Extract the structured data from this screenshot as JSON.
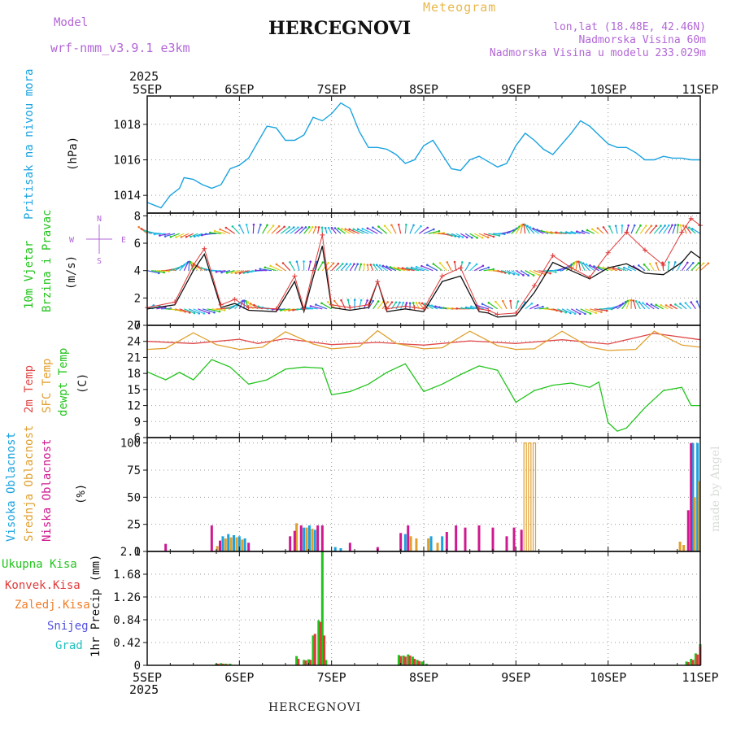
{
  "header": {
    "model_label": "Model",
    "model_name": "wrf-nmm_v3.9.1 e3km",
    "title": "HERCEGNOVI",
    "subtitle": "Meteogram",
    "lonlat": "lon,lat (18.48E, 42.46N)",
    "elevation": "Nadmorska Visina 60m",
    "model_elevation": "Nadmorska Visina u modelu 233.029m"
  },
  "footer": {
    "station": "HERCEGNOVI",
    "credit": "made by Angel"
  },
  "x_axis": {
    "year": "2025",
    "day_labels": [
      "5SEP",
      "6SEP",
      "7SEP",
      "8SEP",
      "9SEP",
      "10SEP",
      "11SEP"
    ]
  },
  "colors": {
    "pressure": "#1aa3e0",
    "wind_speed": "#111111",
    "wind_gust": "#e03a3a",
    "t2m": "#e04848",
    "tsfc": "#e0a030",
    "dewpoint": "#22c41c",
    "cloud_high": "#1aa3e0",
    "cloud_mid": "#e0a030",
    "cloud_low": "#d01890",
    "precip_total": "#22c41c",
    "precip_conv": "#e03a3a",
    "precip_frz": "#f07d28",
    "snow": "#5050e0",
    "grad": "#20c0c0",
    "compass": "#b266d6"
  },
  "compass_rose": {
    "n": "N",
    "s": "S",
    "e": "E",
    "w": "W"
  },
  "chart_data": [
    {
      "type": "line",
      "id": "pressure",
      "ylabels": [
        "Pritisak na nivou mora",
        "(hPa)"
      ],
      "yticks": [
        "1014",
        "1016",
        "1018"
      ],
      "ylim": [
        1013,
        1019.6
      ],
      "series": [
        {
          "name": "Pritisak na nivou mora",
          "x": [
            0,
            0.1,
            0.15,
            0.25,
            0.35,
            0.4,
            0.5,
            0.6,
            0.7,
            0.8,
            0.9,
            1.0,
            1.1,
            1.2,
            1.3,
            1.4,
            1.5,
            1.6,
            1.7,
            1.8,
            1.9,
            2.0,
            2.1,
            2.2,
            2.3,
            2.4,
            2.5,
            2.6,
            2.7,
            2.8,
            2.9,
            3.0,
            3.1,
            3.2,
            3.3,
            3.4,
            3.5,
            3.6,
            3.7,
            3.8,
            3.9,
            4.0,
            4.1,
            4.2,
            4.3,
            4.4,
            4.5,
            4.6,
            4.7,
            4.8,
            4.9,
            5.0,
            5.1,
            5.2,
            5.3,
            5.4,
            5.5,
            5.6,
            5.7,
            5.8,
            5.9,
            6.0
          ],
          "values": [
            1013.6,
            1013.4,
            1013.3,
            1014.0,
            1014.4,
            1015.0,
            1014.9,
            1014.6,
            1014.4,
            1014.6,
            1015.5,
            1015.7,
            1016.1,
            1017.0,
            1017.9,
            1017.8,
            1017.1,
            1017.1,
            1017.4,
            1018.4,
            1018.2,
            1018.6,
            1019.2,
            1018.9,
            1017.6,
            1016.7,
            1016.7,
            1016.6,
            1016.3,
            1015.8,
            1016.0,
            1016.8,
            1017.1,
            1016.3,
            1015.5,
            1015.4,
            1016.0,
            1016.2,
            1015.9,
            1015.6,
            1015.8,
            1016.8,
            1017.5,
            1017.1,
            1016.6,
            1016.3,
            1016.9,
            1017.5,
            1018.2,
            1017.9,
            1017.4,
            1016.9,
            1016.7,
            1016.7,
            1016.4,
            1016.0,
            1016.0,
            1016.2,
            1016.1,
            1016.1,
            1016.0,
            1016.0
          ]
        }
      ]
    },
    {
      "type": "line",
      "id": "wind",
      "ylabels": [
        "10m Vjetar",
        "Brzina i Pravac",
        "(m/s)"
      ],
      "yticks": [
        "0",
        "2",
        "4",
        "6",
        "8"
      ],
      "ylim": [
        0,
        8.2
      ],
      "barb_rows": [
        1.2,
        4.0,
        6.7
      ],
      "series": [
        {
          "name": "speed",
          "x": [
            0,
            0.3,
            0.5,
            0.62,
            0.8,
            0.95,
            1.1,
            1.4,
            1.6,
            1.7,
            1.8,
            1.9,
            2.0,
            2.2,
            2.4,
            2.5,
            2.6,
            2.8,
            2.9,
            3.0,
            3.2,
            3.4,
            3.6,
            3.7,
            3.8,
            4.0,
            4.2,
            4.4,
            4.6,
            4.8,
            5.0,
            5.2,
            5.4,
            5.6,
            5.8,
            5.9,
            6.0
          ],
          "values": [
            1.2,
            1.5,
            4.0,
            5.2,
            1.3,
            1.6,
            1.1,
            1.0,
            3.2,
            1.0,
            3.5,
            5.8,
            1.3,
            1.1,
            1.3,
            3.2,
            1.0,
            1.2,
            1.1,
            1.0,
            3.2,
            3.6,
            1.0,
            0.9,
            0.6,
            0.7,
            2.4,
            4.6,
            4.0,
            3.4,
            4.2,
            4.5,
            3.8,
            3.7,
            4.6,
            5.4,
            4.9
          ]
        },
        {
          "name": "gust",
          "x": [
            0,
            0.3,
            0.5,
            0.62,
            0.8,
            0.95,
            1.1,
            1.4,
            1.6,
            1.7,
            1.8,
            1.9,
            2.0,
            2.2,
            2.4,
            2.5,
            2.6,
            2.8,
            2.9,
            3.0,
            3.2,
            3.4,
            3.6,
            3.7,
            3.8,
            4.0,
            4.2,
            4.4,
            4.6,
            4.8,
            5.0,
            5.2,
            5.4,
            5.6,
            5.8,
            5.9,
            6.0
          ],
          "values": [
            1.3,
            1.7,
            4.4,
            5.6,
            1.5,
            1.9,
            1.3,
            1.2,
            3.6,
            1.2,
            4.0,
            6.6,
            1.5,
            1.3,
            1.5,
            3.2,
            1.2,
            1.4,
            1.3,
            1.2,
            3.6,
            4.2,
            1.2,
            1.1,
            0.8,
            0.9,
            2.9,
            5.1,
            4.2,
            3.5,
            5.3,
            6.8,
            5.5,
            4.4,
            6.8,
            7.8,
            7.3
          ]
        }
      ]
    },
    {
      "type": "line",
      "id": "temperature",
      "ylabels": [
        "2m Temp",
        "SFC Temp",
        "dewpt Temp",
        "(C)"
      ],
      "yticks": [
        "6",
        "9",
        "12",
        "15",
        "18",
        "21",
        "24",
        "27"
      ],
      "ylim": [
        6,
        27
      ],
      "series": [
        {
          "name": "2m Temp",
          "x": [
            0,
            0.5,
            1.0,
            1.2,
            1.5,
            2.0,
            2.5,
            3.0,
            3.5,
            4.0,
            4.5,
            5.0,
            5.5,
            6.0
          ],
          "values": [
            24.0,
            23.6,
            24.4,
            23.6,
            24.5,
            23.4,
            23.8,
            23.3,
            24.1,
            23.6,
            24.3,
            23.5,
            25.5,
            24.3
          ]
        },
        {
          "name": "SFC Temp",
          "x": [
            0,
            0.2,
            0.5,
            0.75,
            1.0,
            1.25,
            1.5,
            1.8,
            2.0,
            2.3,
            2.5,
            2.7,
            3.0,
            3.2,
            3.5,
            3.8,
            4.0,
            4.2,
            4.5,
            4.8,
            5.0,
            5.3,
            5.5,
            5.8,
            6.0
          ],
          "values": [
            22.5,
            22.7,
            25.6,
            23.4,
            22.5,
            22.9,
            25.8,
            23.5,
            22.6,
            23.0,
            26.0,
            23.6,
            22.6,
            22.8,
            25.9,
            23.2,
            22.5,
            22.6,
            25.9,
            22.9,
            22.3,
            22.5,
            25.9,
            23.3,
            22.9
          ]
        },
        {
          "name": "dewpt Temp",
          "x": [
            0,
            0.2,
            0.35,
            0.5,
            0.7,
            0.9,
            1.1,
            1.3,
            1.5,
            1.7,
            1.9,
            2.0,
            2.2,
            2.4,
            2.6,
            2.8,
            3.0,
            3.2,
            3.4,
            3.6,
            3.8,
            4.0,
            4.2,
            4.4,
            4.6,
            4.8,
            4.9,
            5.0,
            5.1,
            5.2,
            5.4,
            5.6,
            5.8,
            5.9,
            6.0
          ],
          "values": [
            18.3,
            16.8,
            18.2,
            16.8,
            20.6,
            19.2,
            16.0,
            16.8,
            18.8,
            19.2,
            19.0,
            14.0,
            14.6,
            16.0,
            18.2,
            19.8,
            14.6,
            16.0,
            17.8,
            19.4,
            18.6,
            12.6,
            14.8,
            15.8,
            16.2,
            15.4,
            16.4,
            8.8,
            7.2,
            7.8,
            11.6,
            14.8,
            15.4,
            12.0,
            12.0
          ]
        }
      ]
    },
    {
      "type": "bar",
      "id": "clouds",
      "ylabels": [
        "Visoka Oblacnost",
        "Srednja Oblacnost",
        "Niska Oblacnost",
        "(%)"
      ],
      "yticks": [
        "0",
        "25",
        "50",
        "75",
        "100"
      ],
      "ylim": [
        0,
        105
      ],
      "series": [
        {
          "name": "Visoka Oblacnost",
          "x": [
            0.82,
            0.88,
            0.94,
            1.0,
            1.06,
            1.7,
            1.76,
            1.82,
            2.04,
            2.1,
            2.8,
            3.08,
            3.2,
            5.92,
            5.97
          ],
          "values": [
            14,
            16,
            15,
            14,
            12,
            22,
            24,
            20,
            4,
            3,
            16,
            14,
            14,
            100,
            100
          ]
        },
        {
          "name": "Srednja Oblacnost",
          "x": [
            0.76,
            0.85,
            0.91,
            0.97,
            1.03,
            1.62,
            1.73,
            1.79,
            2.86,
            2.92,
            3.05,
            3.15,
            4.1,
            4.15,
            4.2,
            5.78,
            5.82,
            5.94,
            5.99
          ],
          "values": [
            5,
            12,
            13,
            13,
            11,
            26,
            22,
            21,
            14,
            12,
            12,
            8,
            100,
            100,
            100,
            9,
            6,
            50,
            65
          ]
        },
        {
          "name": "Niska Oblacnost",
          "x": [
            0.2,
            0.7,
            0.79,
            1.1,
            1.55,
            1.6,
            1.67,
            1.85,
            1.9,
            2.2,
            2.5,
            2.75,
            2.83,
            3.25,
            3.35,
            3.45,
            3.6,
            3.75,
            3.9,
            3.98,
            4.06,
            5.87,
            5.9
          ],
          "values": [
            7,
            24,
            10,
            8,
            14,
            19,
            24,
            24,
            24,
            8,
            4,
            17,
            24,
            18,
            24,
            22,
            24,
            22,
            14,
            22,
            20,
            38,
            100
          ]
        }
      ]
    },
    {
      "type": "bar",
      "id": "precip",
      "ylabels": [
        "Ukupna Kisa",
        "Konvek.Kisa",
        "Zaledj.Kisa",
        "Snijeg",
        "Grad",
        "1hr Precip (mm)"
      ],
      "yticks": [
        "0",
        "0.42",
        "0.84",
        "1.26",
        "1.68",
        "2.1"
      ],
      "ylim": [
        0,
        2.1
      ],
      "series": [
        {
          "name": "Ukupna Kisa",
          "x": [
            0.75,
            0.8,
            0.85,
            0.9,
            1.62,
            1.7,
            1.75,
            1.8,
            1.86,
            1.9,
            1.94,
            2.73,
            2.78,
            2.83,
            2.88,
            2.93,
            2.98,
            3.03,
            5.85,
            5.9,
            5.95,
            6.0
          ],
          "values": [
            0.03,
            0.04,
            0.03,
            0.03,
            0.17,
            0.1,
            0.11,
            0.55,
            0.83,
            2.1,
            0.1,
            0.19,
            0.18,
            0.2,
            0.16,
            0.1,
            0.07,
            0.03,
            0.07,
            0.12,
            0.22,
            0.39
          ]
        },
        {
          "name": "Konvek.Kisa",
          "x": [
            0.77,
            0.82,
            0.87,
            1.64,
            1.72,
            1.77,
            1.82,
            1.88,
            1.92,
            2.75,
            2.8,
            2.85,
            2.9,
            2.95,
            5.87,
            5.92,
            5.97,
            6.0
          ],
          "values": [
            0.03,
            0.03,
            0.02,
            0.12,
            0.09,
            0.1,
            0.58,
            0.8,
            0.55,
            0.17,
            0.16,
            0.18,
            0.12,
            0.08,
            0.06,
            0.1,
            0.2,
            0.35
          ]
        }
      ]
    }
  ]
}
